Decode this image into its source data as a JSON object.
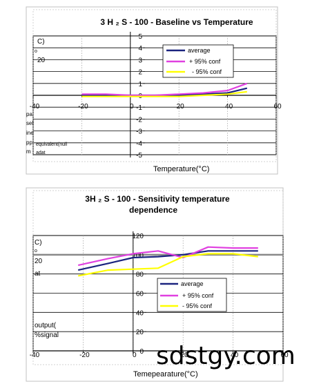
{
  "watermark": "sdstgy.com",
  "chart_data": [
    {
      "type": "line",
      "title": "3 H ₂ S - 100 - Baseline  vs  Temperature",
      "xlabel": "Temperature(°C)",
      "left_fragments": [
        "C)",
        "o",
        "20",
        "pa",
        "sel",
        "ine",
        "pp",
        "m",
        "equivalent(null",
        "adat"
      ],
      "xlim": [
        -40,
        60
      ],
      "ylim": [
        -5,
        5
      ],
      "xticks": [
        "-40",
        "-20",
        "0",
        "20",
        "40",
        "60"
      ],
      "yticks": [
        "-5",
        "-4",
        "-3",
        "-2",
        "-1",
        "0",
        "1",
        "2",
        "3",
        "4",
        "5"
      ],
      "grid": true,
      "legend_position": "top-right",
      "series": [
        {
          "name": "average",
          "legend_label": "average",
          "color": "#1a237e",
          "x": [
            -20,
            -10,
            0,
            10,
            20,
            30,
            40,
            48
          ],
          "y": [
            0.0,
            0.0,
            0.0,
            0.0,
            0.0,
            0.1,
            0.2,
            0.6
          ]
        },
        {
          "name": "+ 95% conf",
          "legend_label": "+     95% conf",
          "color": "#e040e0",
          "x": [
            -20,
            -10,
            0,
            10,
            20,
            30,
            40,
            48
          ],
          "y": [
            0.1,
            0.1,
            0.0,
            0.0,
            0.1,
            0.2,
            0.4,
            1.0
          ]
        },
        {
          "name": "- 95% conf",
          "legend_label": "-    95% conf",
          "color": "#ffff00",
          "x": [
            -20,
            -10,
            0,
            10,
            20,
            30,
            40,
            48
          ],
          "y": [
            -0.1,
            -0.1,
            -0.1,
            -0.1,
            -0.1,
            0.0,
            0.1,
            0.3
          ]
        }
      ]
    },
    {
      "type": "line",
      "title": "3H ₂ S - 100 - Sensitivity  temperature",
      "subtitle": "dependence",
      "xlabel": "Temepearature(°C)",
      "left_fragments": [
        "C)",
        "o",
        "20",
        "at",
        "output(",
        "%signal"
      ],
      "xlim": [
        -40,
        60
      ],
      "ylim": [
        0,
        120
      ],
      "xticks": [
        "-40",
        "-20",
        "0",
        "20",
        "40",
        "60"
      ],
      "yticks": [
        "0",
        "20",
        "40",
        "60",
        "80",
        "100",
        "120"
      ],
      "grid": true,
      "legend_position": "bottom-center",
      "series": [
        {
          "name": "average",
          "legend_label": "average",
          "color": "#1a237e",
          "x": [
            -22,
            -10,
            0,
            10,
            20,
            30,
            40,
            50
          ],
          "y": [
            84,
            91,
            97,
            98,
            100,
            104,
            104,
            104
          ]
        },
        {
          "name": "+ 95% conf",
          "legend_label": "+     95% conf",
          "color": "#e040e0",
          "x": [
            -22,
            -10,
            0,
            10,
            20,
            30,
            40,
            50
          ],
          "y": [
            89,
            96,
            101,
            104,
            97,
            108,
            107,
            107
          ]
        },
        {
          "name": "- 95% conf",
          "legend_label": "-     95% conf",
          "color": "#ffff00",
          "x": [
            -22,
            -10,
            0,
            10,
            20,
            30,
            40,
            50
          ],
          "y": [
            78,
            84,
            85,
            86,
            98,
            101,
            101,
            98
          ]
        }
      ]
    }
  ]
}
